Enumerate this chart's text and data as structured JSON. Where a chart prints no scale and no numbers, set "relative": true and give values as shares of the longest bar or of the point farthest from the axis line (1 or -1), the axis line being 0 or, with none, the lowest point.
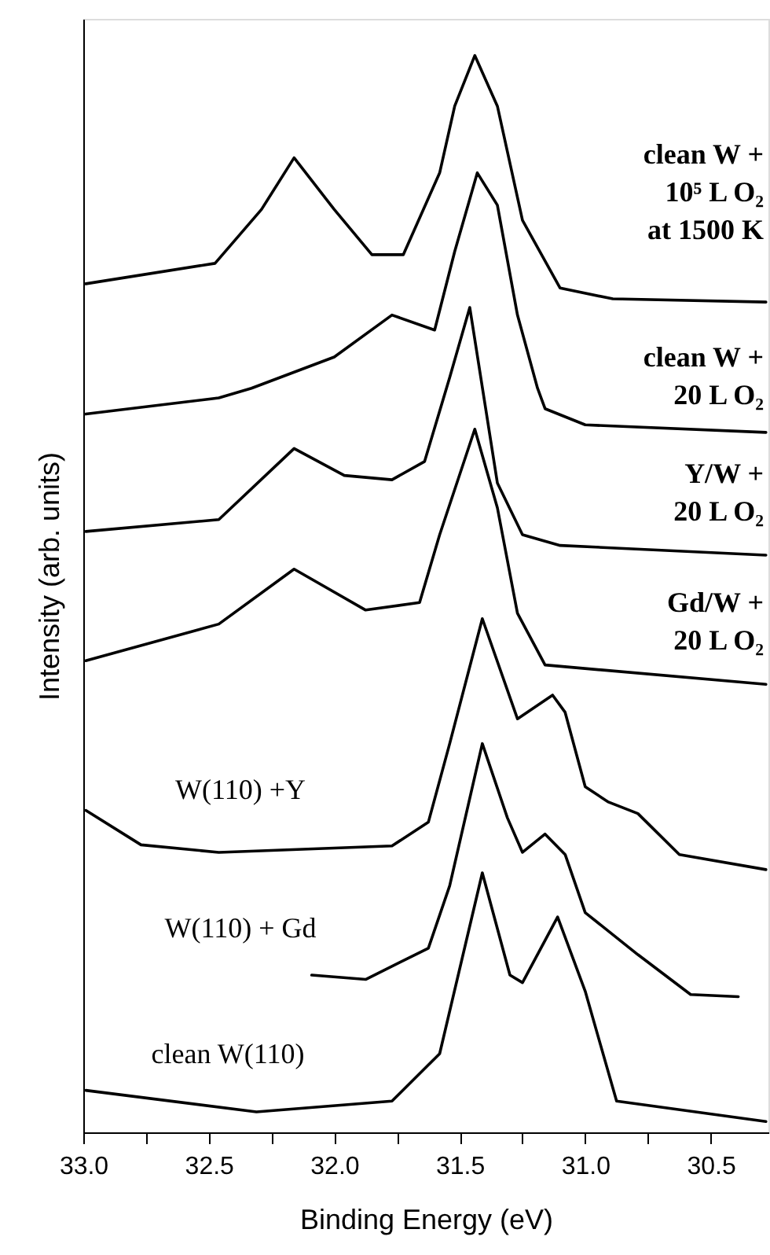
{
  "chart_data": {
    "type": "line",
    "relative": true,
    "xlabel": "Binding Energy (eV)",
    "ylabel": "Intensity (arb. units)",
    "xlim": [
      33.0,
      30.27
    ],
    "xticks": [
      {
        "value": 33,
        "label": "33.0"
      },
      {
        "value": 32.75,
        "label": null
      },
      32.5,
      {
        "value": 32.25,
        "label": null
      },
      {
        "value": 32,
        "label": "32.0"
      },
      {
        "value": 31.75,
        "label": null
      },
      31.5,
      {
        "value": 31.25,
        "label": null
      },
      {
        "value": 31,
        "label": "31.0"
      },
      {
        "value": 30.75,
        "label": null
      },
      30.5
    ],
    "grid": false,
    "line_style": "solid",
    "marker": "none",
    "series": [
      {
        "name": "clean W +\n10⁵ L O₂\nat 1500 K",
        "color": "#000000",
        "x": [
          32.99,
          32.475,
          32.29,
          32.16,
          32.0,
          31.85,
          31.725,
          31.58,
          31.52,
          31.44,
          31.35,
          31.25,
          31.1,
          30.89,
          30.28
        ],
        "values": [
          0.788,
          0.807,
          0.857,
          0.905,
          0.857,
          0.815,
          0.815,
          0.891,
          0.953,
          1.0,
          0.953,
          0.847,
          0.784,
          0.774,
          0.771
        ]
      },
      {
        "name": "clean W +\n20 L O₂",
        "color": "#000000",
        "x": [
          32.99,
          32.46,
          32.33,
          32.0,
          31.77,
          31.6,
          31.52,
          31.43,
          31.35,
          31.27,
          31.19,
          31.16,
          31.0,
          30.28
        ],
        "values": [
          0.667,
          0.682,
          0.691,
          0.72,
          0.759,
          0.745,
          0.818,
          0.891,
          0.861,
          0.759,
          0.691,
          0.672,
          0.657,
          0.65
        ]
      },
      {
        "name": "Y/W +\n20 L O₂",
        "color": "#000000",
        "x": [
          32.99,
          32.46,
          32.16,
          31.96,
          31.77,
          31.64,
          31.54,
          31.46,
          31.35,
          31.25,
          31.1,
          30.28
        ],
        "values": [
          0.558,
          0.569,
          0.635,
          0.61,
          0.606,
          0.623,
          0.701,
          0.766,
          0.603,
          0.555,
          0.545,
          0.536
        ]
      },
      {
        "name": "Gd/W +\n20 L O₂",
        "color": "#000000",
        "x": [
          32.99,
          32.46,
          32.16,
          31.875,
          31.66,
          31.58,
          31.44,
          31.35,
          31.27,
          31.16,
          30.28
        ],
        "values": [
          0.438,
          0.472,
          0.523,
          0.485,
          0.492,
          0.555,
          0.653,
          0.58,
          0.482,
          0.434,
          0.416
        ]
      },
      {
        "name": "W(110) +Y",
        "color": "#000000",
        "x": [
          32.99,
          32.77,
          32.46,
          31.77,
          31.625,
          31.54,
          31.41,
          31.27,
          31.13,
          31.08,
          31.0,
          30.91,
          30.79,
          30.625,
          30.28
        ],
        "values": [
          0.299,
          0.267,
          0.26,
          0.266,
          0.288,
          0.361,
          0.477,
          0.384,
          0.406,
          0.39,
          0.321,
          0.307,
          0.296,
          0.258,
          0.244
        ]
      },
      {
        "name": "W(110) + Gd",
        "color": "#000000",
        "x": [
          32.09,
          31.875,
          31.625,
          31.54,
          31.41,
          31.31,
          31.25,
          31.16,
          31.08,
          31.0,
          30.79,
          30.58,
          30.39
        ],
        "values": [
          0.146,
          0.142,
          0.171,
          0.229,
          0.361,
          0.292,
          0.26,
          0.277,
          0.258,
          0.204,
          0.165,
          0.128,
          0.126
        ]
      },
      {
        "name": "clean W(110)",
        "color": "#000000",
        "x": [
          32.99,
          32.31,
          31.77,
          31.58,
          31.41,
          31.3,
          31.25,
          31.11,
          31.0,
          30.875,
          30.28
        ],
        "values": [
          0.039,
          0.019,
          0.029,
          0.073,
          0.241,
          0.146,
          0.139,
          0.2,
          0.131,
          0.029,
          0.01
        ]
      }
    ]
  }
}
